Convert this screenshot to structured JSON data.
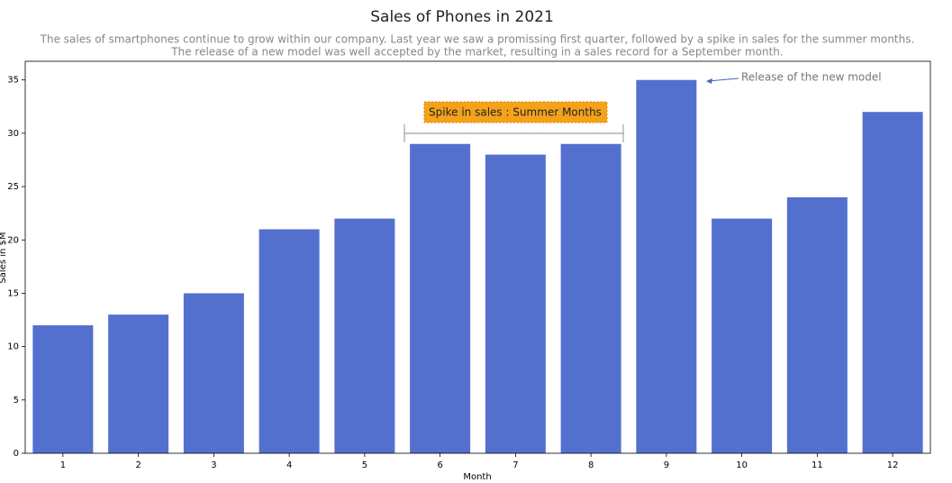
{
  "chart_data": {
    "type": "bar",
    "title": "Sales of Phones in 2021",
    "subtitle": [
      "The sales of smartphones continue to grow within our company. Last year we saw a promissing first quarter, followed by a spike in sales for the summer months.",
      "The release of a new model was well accepted by the market, resulting in a sales record for a September month."
    ],
    "x_label": "Month",
    "y_label": "Sales in $M",
    "categories": [
      "1",
      "2",
      "3",
      "4",
      "5",
      "6",
      "7",
      "8",
      "9",
      "10",
      "11",
      "12"
    ],
    "values": [
      12,
      13,
      15,
      21,
      22,
      29,
      28,
      29,
      35,
      22,
      24,
      32
    ],
    "color": "#5470cf",
    "ylim": [
      0,
      36.75
    ],
    "yticks": [
      0,
      5,
      10,
      15,
      20,
      25,
      30,
      35
    ],
    "annotations": [
      "Spike in sales : Summer Months",
      "Release of the new model"
    ]
  }
}
